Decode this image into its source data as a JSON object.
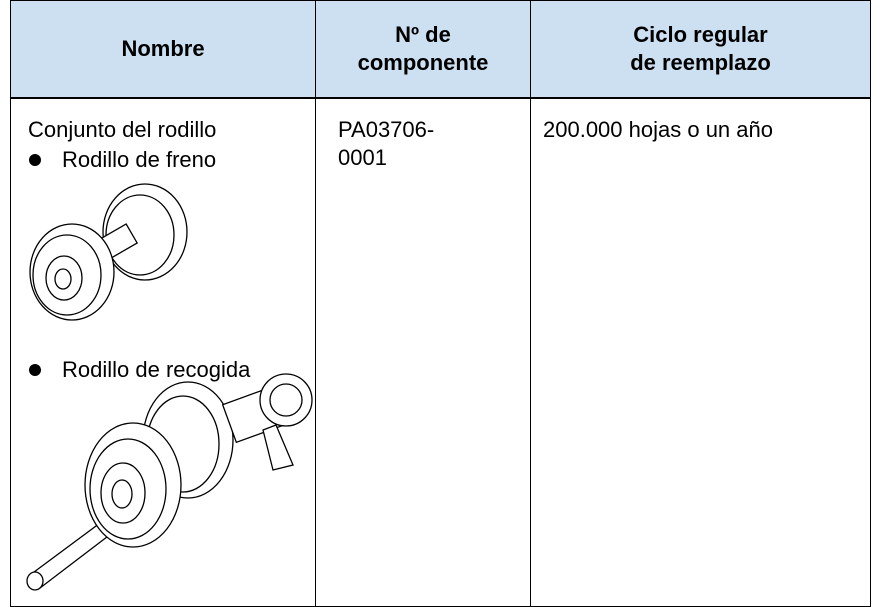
{
  "table": {
    "header": [
      [
        "Nombre"
      ],
      [
        "Nº de",
        "componente"
      ],
      [
        "Ciclo regular",
        "de reemplazo"
      ]
    ],
    "rows": [
      {
        "name": "Conjunto del rodillo",
        "items": [
          "Rodillo de freno",
          "Rodillo de recogida"
        ],
        "part": [
          "PA03706-",
          "0001"
        ],
        "cycle": "200.000 hojas o un año"
      }
    ]
  }
}
